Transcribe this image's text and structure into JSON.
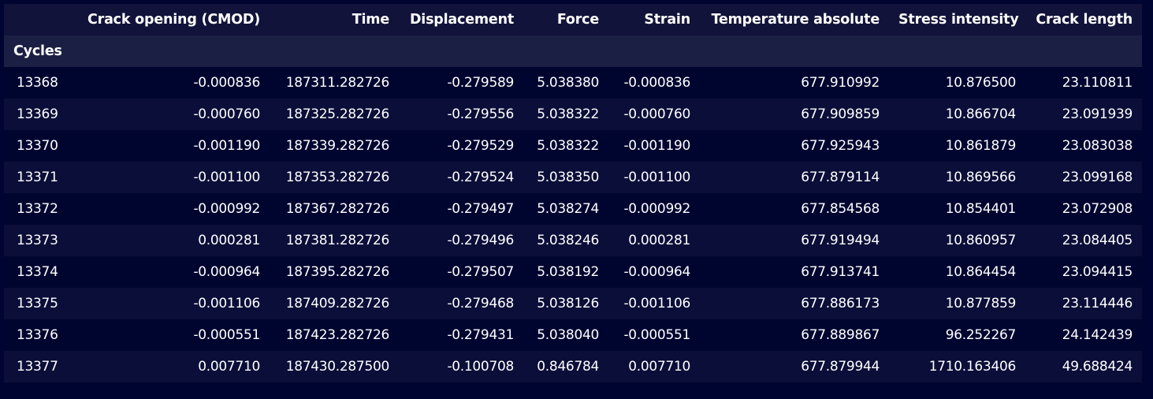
{
  "table": {
    "index_name": "Cycles",
    "columns": [
      "Crack opening (CMOD)",
      "Time",
      "Displacement",
      "Force",
      "Strain",
      "Temperature absolute",
      "Stress intensity",
      "Crack length"
    ],
    "rows": [
      {
        "index": "13368",
        "cells": [
          "-0.000836",
          "187311.282726",
          "-0.279589",
          "5.038380",
          "-0.000836",
          "677.910992",
          "10.876500",
          "23.110811"
        ]
      },
      {
        "index": "13369",
        "cells": [
          "-0.000760",
          "187325.282726",
          "-0.279556",
          "5.038322",
          "-0.000760",
          "677.909859",
          "10.866704",
          "23.091939"
        ]
      },
      {
        "index": "13370",
        "cells": [
          "-0.001190",
          "187339.282726",
          "-0.279529",
          "5.038322",
          "-0.001190",
          "677.925943",
          "10.861879",
          "23.083038"
        ]
      },
      {
        "index": "13371",
        "cells": [
          "-0.001100",
          "187353.282726",
          "-0.279524",
          "5.038350",
          "-0.001100",
          "677.879114",
          "10.869566",
          "23.099168"
        ]
      },
      {
        "index": "13372",
        "cells": [
          "-0.000992",
          "187367.282726",
          "-0.279497",
          "5.038274",
          "-0.000992",
          "677.854568",
          "10.854401",
          "23.072908"
        ]
      },
      {
        "index": "13373",
        "cells": [
          "0.000281",
          "187381.282726",
          "-0.279496",
          "5.038246",
          "0.000281",
          "677.919494",
          "10.860957",
          "23.084405"
        ]
      },
      {
        "index": "13374",
        "cells": [
          "-0.000964",
          "187395.282726",
          "-0.279507",
          "5.038192",
          "-0.000964",
          "677.913741",
          "10.864454",
          "23.094415"
        ]
      },
      {
        "index": "13375",
        "cells": [
          "-0.001106",
          "187409.282726",
          "-0.279468",
          "5.038126",
          "-0.001106",
          "677.886173",
          "10.877859",
          "23.114446"
        ]
      },
      {
        "index": "13376",
        "cells": [
          "-0.000551",
          "187423.282726",
          "-0.279431",
          "5.038040",
          "-0.000551",
          "677.889867",
          "96.252267",
          "24.142439"
        ]
      },
      {
        "index": "13377",
        "cells": [
          "0.007710",
          "187430.287500",
          "-0.100708",
          "0.846784",
          "0.007710",
          "677.879944",
          "1710.163406",
          "49.688424"
        ]
      }
    ]
  },
  "colors": {
    "background": "#000430",
    "header_background": "#11133a",
    "index_header_background": "#1c1f44",
    "row_odd": "#000530",
    "row_even": "#0b0e38",
    "text": "#ffffff"
  }
}
